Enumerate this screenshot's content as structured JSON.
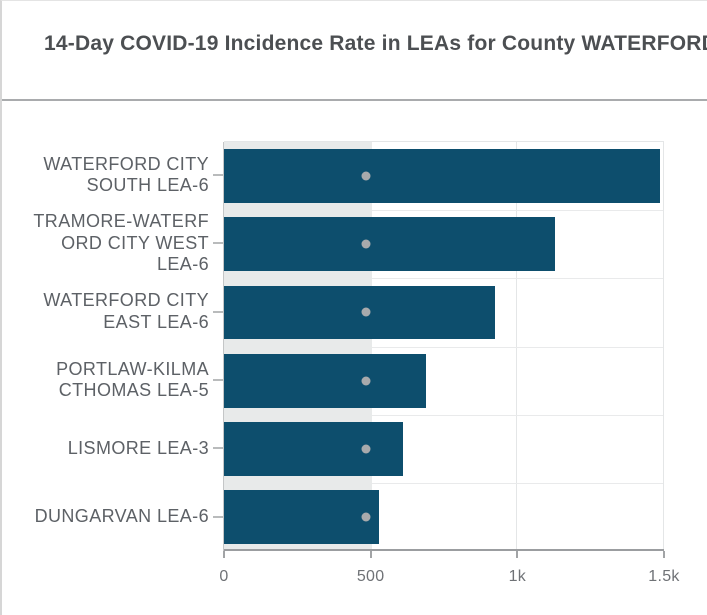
{
  "header": {
    "title": "14-Day COVID-19 Incidence Rate in LEAs for County WATERFORD"
  },
  "chart_data": {
    "type": "bar",
    "orientation": "horizontal",
    "title": "14-Day COVID-19 Incidence Rate in LEAs for County WATERFORD",
    "categories": [
      "WATERFORD CITY SOUTH LEA-6",
      "TRAMORE-WATERFORD CITY WEST LEA-6",
      "WATERFORD CITY EAST LEA-6",
      "PORTLAW-KILMACTHOMAS LEA-5",
      "LISMORE LEA-3",
      "DUNGARVAN LEA-6"
    ],
    "category_labels_wrapped": [
      "WATERFORD CITY\nSOUTH LEA-6",
      "TRAMORE-WATERF\nORD CITY WEST\nLEA-6",
      "WATERFORD CITY\nEAST LEA-6",
      "PORTLAW-KILMA\nCTHOMAS LEA-5",
      "LISMORE LEA-3",
      "DUNGARVAN LEA-6"
    ],
    "values": [
      1489,
      1131,
      926,
      689,
      612,
      528
    ],
    "reference_band_value": 505,
    "reference_dot_value": 486,
    "xlim": [
      0,
      1500
    ],
    "x_ticks": [
      {
        "value": 0,
        "label": "0"
      },
      {
        "value": 500,
        "label": "500"
      },
      {
        "value": 1000,
        "label": "1k"
      },
      {
        "value": 1500,
        "label": "1.5k"
      }
    ],
    "grid": true,
    "legend": "none",
    "xlabel": "",
    "ylabel": "",
    "colors": {
      "bar": "#0d4e6d",
      "reference_band": "#e8eaea",
      "reference_dot": "#a8aaac",
      "gridline": "#e4e6e7",
      "axis_line": "#9b9da0",
      "title_text": "#4c4f52",
      "label_text": "#5d6166"
    }
  }
}
